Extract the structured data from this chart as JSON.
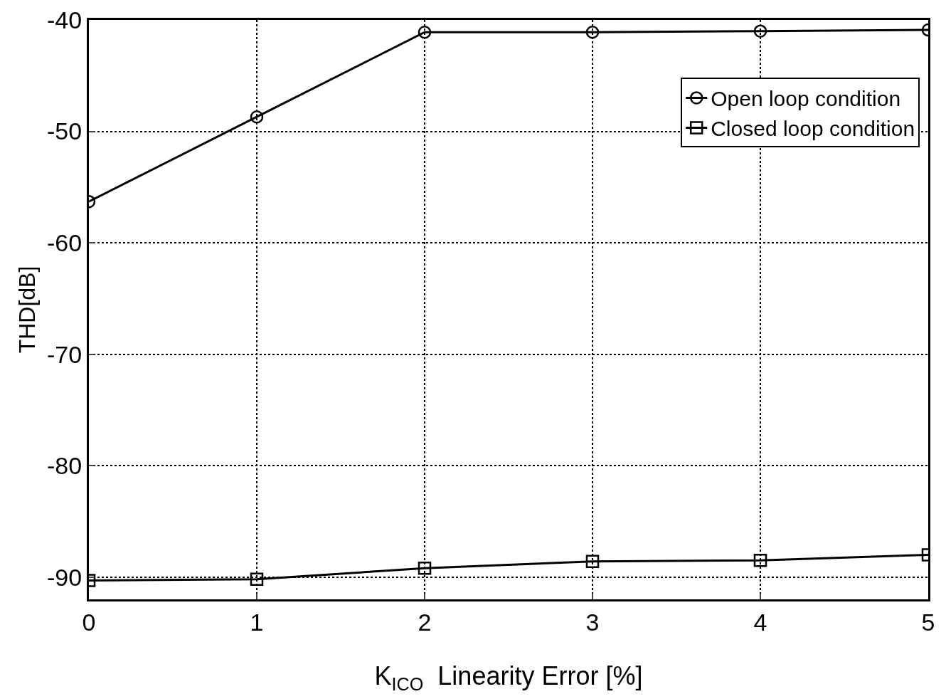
{
  "chart_data": {
    "type": "line",
    "xlabel": "K$_{ICO}$  Linearity Error [%]",
    "ylabel": "THD[dB]",
    "x": [
      0,
      1,
      2,
      3,
      4,
      5
    ],
    "series": [
      {
        "name": "Open loop condition",
        "color": "#000000",
        "marker": "circle",
        "values": [
          -56.3,
          -48.7,
          -41.1,
          -41.1,
          -41.0,
          -40.9
        ]
      },
      {
        "name": "Closed loop condition",
        "color": "#000000",
        "marker": "square",
        "values": [
          -90.3,
          -90.2,
          -89.2,
          -88.6,
          -88.5,
          -88.0
        ]
      }
    ],
    "xlim": [
      0,
      5
    ],
    "xticks": [
      0,
      1,
      2,
      3,
      4,
      5
    ],
    "ylim": [
      -92,
      -40
    ],
    "yticks": [
      -90,
      -80,
      -70,
      -60,
      -50,
      -40
    ],
    "grid": true,
    "legend": "top right",
    "line_style": "solid"
  }
}
